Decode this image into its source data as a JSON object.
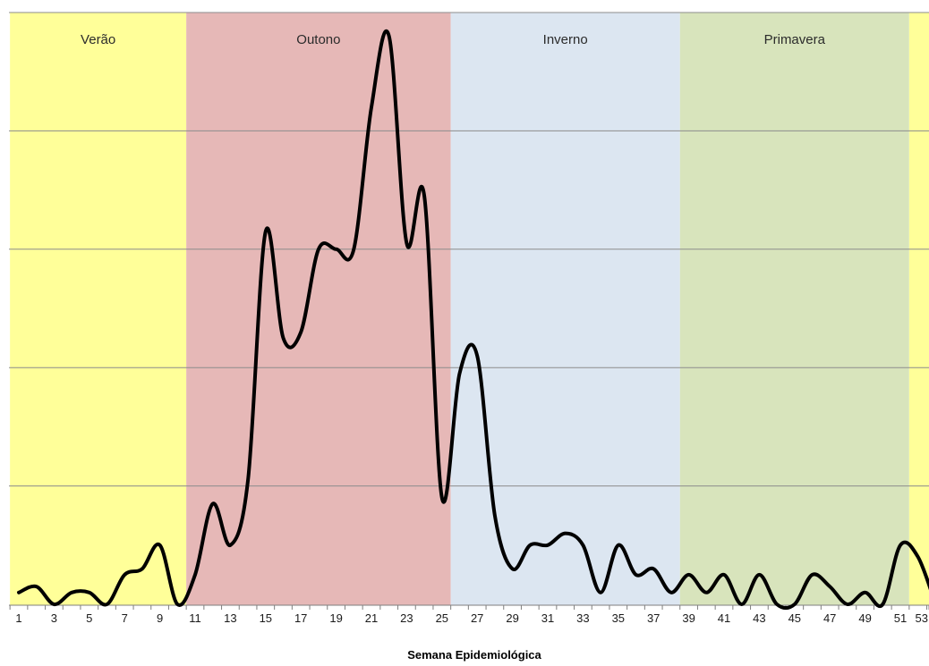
{
  "chart_data": {
    "type": "line",
    "title": "",
    "xlabel": "Semana Epidemiológica",
    "ylabel": "",
    "xlim": [
      0.5,
      53.5
    ],
    "ylim": [
      0,
      10
    ],
    "grid": true,
    "x_tick_labels": [
      "1",
      "3",
      "5",
      "7",
      "9",
      "11",
      "13",
      "15",
      "17",
      "19",
      "21",
      "23",
      "25",
      "27",
      "29",
      "31",
      "33",
      "35",
      "37",
      "39",
      "41",
      "43",
      "45",
      "47",
      "49",
      "51",
      "53"
    ],
    "seasons": [
      {
        "label": "Verão",
        "start_week": 0.5,
        "end_week": 10.5,
        "color": "#ffff99"
      },
      {
        "label": "Outono",
        "start_week": 10.5,
        "end_week": 25.5,
        "color": "#e6b8b7"
      },
      {
        "label": "Inverno",
        "start_week": 25.5,
        "end_week": 38.5,
        "color": "#dce6f1"
      },
      {
        "label": "Primavera",
        "start_week": 38.5,
        "end_week": 51.5,
        "color": "#d8e4bc"
      },
      {
        "label": "",
        "start_week": 51.5,
        "end_week": 53.5,
        "color": "#ffff99"
      }
    ],
    "series": [
      {
        "color": "#000000",
        "x": [
          1,
          2,
          3,
          4,
          5,
          6,
          7,
          8,
          9,
          10,
          11,
          12,
          13,
          14,
          15,
          16,
          17,
          18,
          19,
          20,
          21,
          22,
          23,
          24,
          25,
          26,
          27,
          28,
          29,
          30,
          31,
          32,
          33,
          34,
          35,
          36,
          37,
          38,
          39,
          40,
          41,
          42,
          43,
          44,
          45,
          46,
          47,
          48,
          49,
          50,
          51,
          52,
          53
        ],
        "values": [
          0.2,
          0.3,
          0.0,
          0.2,
          0.2,
          0.0,
          0.5,
          0.6,
          1.0,
          0.0,
          0.5,
          1.7,
          1.0,
          2.1,
          6.3,
          4.5,
          4.6,
          6.0,
          6.0,
          6.0,
          8.4,
          9.6,
          6.1,
          6.9,
          1.8,
          3.9,
          4.2,
          1.5,
          0.6,
          1.0,
          1.0,
          1.2,
          1.0,
          0.2,
          1.0,
          0.5,
          0.6,
          0.2,
          0.5,
          0.2,
          0.5,
          0.0,
          0.5,
          0.0,
          0.0,
          0.5,
          0.3,
          0.0,
          0.2,
          0.0,
          1.0,
          0.8,
          0.0
        ]
      }
    ]
  }
}
